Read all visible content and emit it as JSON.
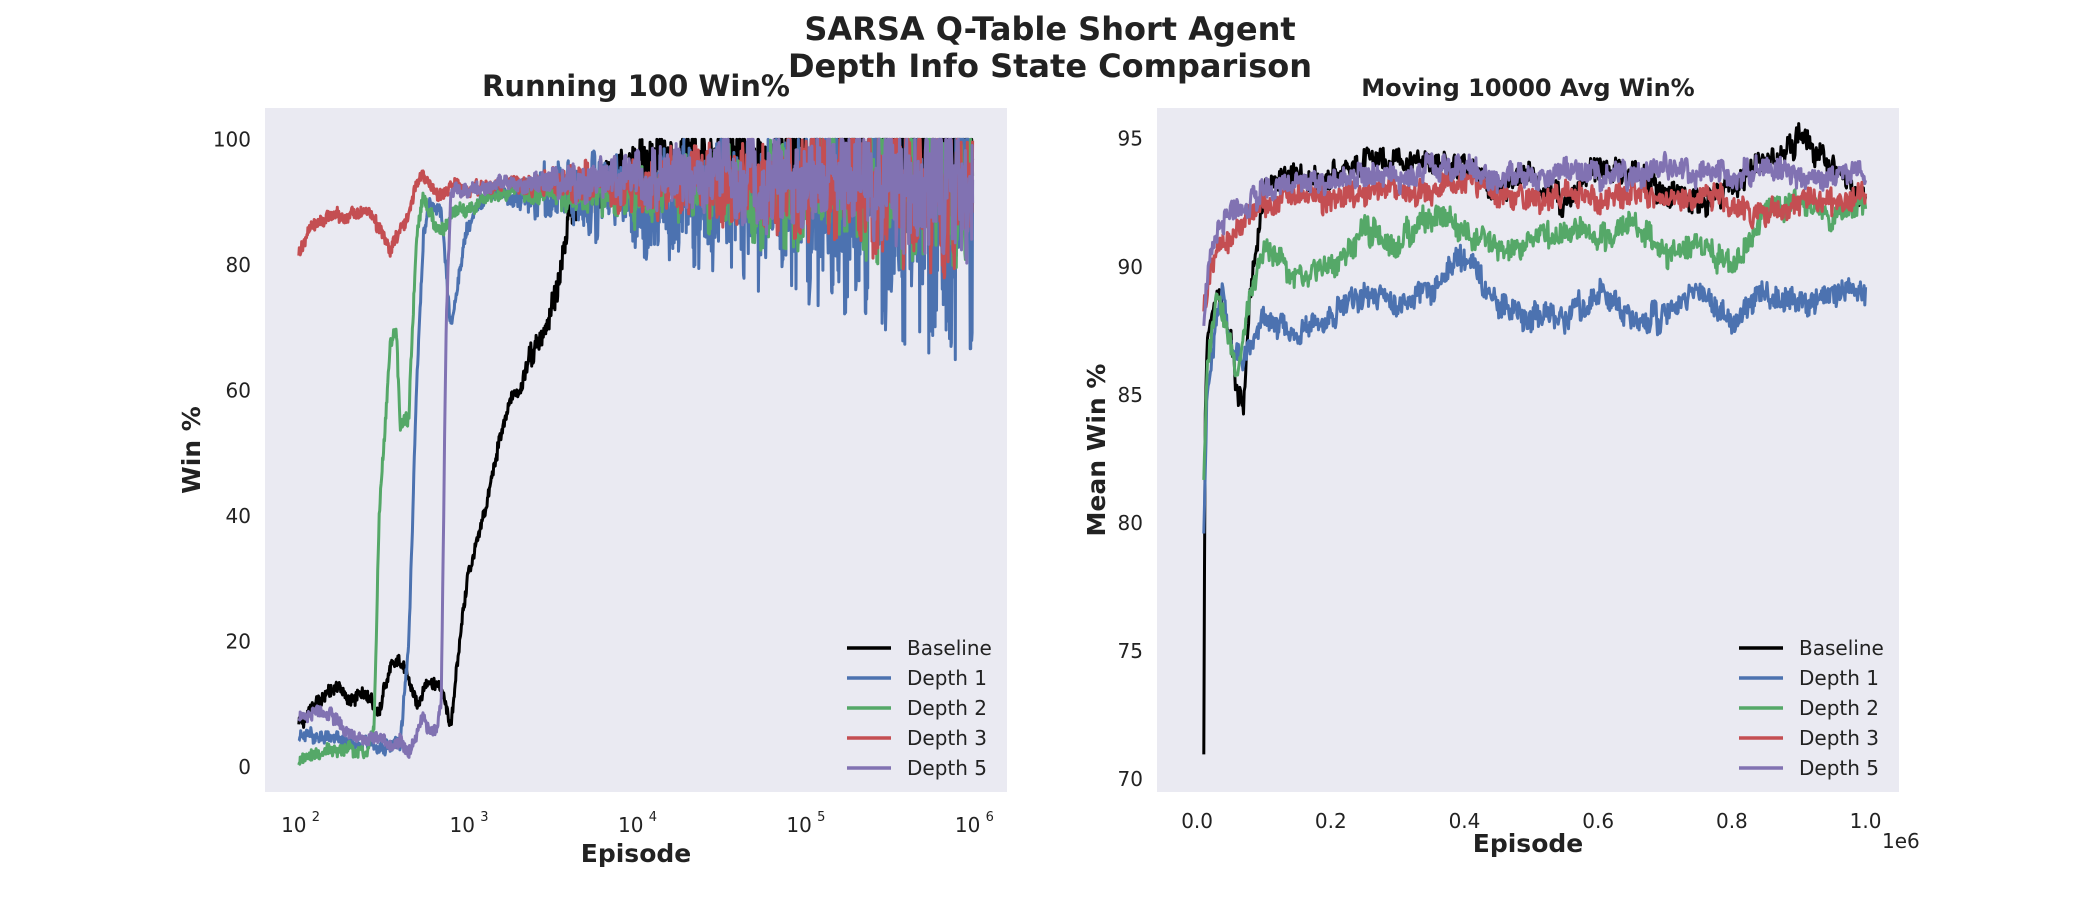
{
  "figure": {
    "suptitle_line1": "SARSA Q-Table Short Agent",
    "suptitle_line2": "Depth Info State Comparison"
  },
  "colors": {
    "background": "#eaeaf2",
    "Baseline": "#000000",
    "Depth 1": "#4c72b0",
    "Depth 2": "#55a868",
    "Depth 3": "#c44e52",
    "Depth 5": "#8172b2"
  },
  "chart_data": [
    {
      "type": "line",
      "title": "Running 100 Win%",
      "xlabel": "Episode",
      "ylabel": "Win %",
      "xscale": "log",
      "xlim": [
        63,
        1600000
      ],
      "ylim": [
        -4,
        105
      ],
      "xtick_labels": [
        {
          "value": 100,
          "base": "10",
          "exp": "2"
        },
        {
          "value": 1000,
          "base": "10",
          "exp": "3"
        },
        {
          "value": 10000,
          "base": "10",
          "exp": "4"
        },
        {
          "value": 100000,
          "base": "10",
          "exp": "5"
        },
        {
          "value": 1000000,
          "base": "10",
          "exp": "6"
        }
      ],
      "yticks": [
        0,
        20,
        40,
        60,
        80,
        100
      ],
      "grid": false,
      "legend": "bottom-right",
      "series": [
        {
          "name": "Baseline",
          "x": [
            100,
            130,
            170,
            200,
            250,
            300,
            350,
            400,
            500,
            600,
            700,
            800,
            900,
            1000,
            1200,
            1500,
            1800,
            2000,
            2500,
            3000,
            3500,
            4000,
            5000,
            7000,
            10000,
            20000,
            50000,
            100000,
            300000,
            1000000
          ],
          "y": [
            7,
            10,
            13,
            10,
            12,
            9,
            16,
            17,
            10,
            14,
            12,
            6,
            20,
            30,
            38,
            50,
            58,
            60,
            67,
            70,
            78,
            88,
            91,
            94,
            95,
            96,
            97,
            97,
            97,
            98
          ]
        },
        {
          "name": "Depth 1",
          "x": [
            100,
            150,
            200,
            250,
            300,
            350,
            400,
            450,
            500,
            550,
            600,
            700,
            800,
            1000,
            1200,
            1500,
            2000,
            3000,
            5000,
            10000,
            20000,
            50000,
            100000,
            300000,
            1000000
          ],
          "y": [
            5,
            5,
            4,
            4,
            3,
            3,
            4,
            20,
            60,
            85,
            90,
            88,
            70,
            86,
            90,
            92,
            90,
            92,
            91,
            90,
            90,
            90,
            90,
            90,
            88
          ]
        },
        {
          "name": "Depth 2",
          "x": [
            100,
            150,
            200,
            250,
            280,
            300,
            350,
            380,
            400,
            450,
            500,
            550,
            600,
            700,
            800,
            1000,
            1500,
            2000,
            3000,
            5000,
            10000,
            20000,
            50000,
            100000,
            300000,
            1000000
          ],
          "y": [
            1,
            3,
            3,
            2,
            6,
            40,
            68,
            70,
            54,
            56,
            85,
            92,
            88,
            85,
            88,
            89,
            91,
            92,
            91,
            92,
            91,
            92,
            91,
            91,
            92,
            92
          ]
        },
        {
          "name": "Depth 3",
          "x": [
            100,
            120,
            150,
            200,
            250,
            300,
            350,
            400,
            450,
            500,
            550,
            600,
            700,
            800,
            1000,
            1500,
            2000,
            3000,
            5000,
            10000,
            30000,
            100000,
            300000,
            1000000
          ],
          "y": [
            82,
            86,
            88,
            88,
            89,
            86,
            82,
            86,
            88,
            93,
            94,
            93,
            91,
            93,
            92,
            93,
            93,
            93,
            93,
            93,
            93,
            93,
            92,
            91
          ]
        },
        {
          "name": "Depth 5",
          "x": [
            100,
            150,
            200,
            250,
            300,
            350,
            400,
            450,
            500,
            550,
            600,
            650,
            700,
            750,
            800,
            1000,
            1500,
            2000,
            3000,
            5000,
            10000,
            30000,
            100000,
            300000,
            1000000
          ],
          "y": [
            8,
            9,
            5,
            4,
            5,
            3,
            4,
            2,
            5,
            8,
            6,
            6,
            10,
            70,
            92,
            92,
            93,
            93,
            93,
            93,
            93,
            94,
            93,
            93,
            93
          ]
        }
      ]
    },
    {
      "type": "line",
      "title": "Moving 10000 Avg Win%",
      "xlabel": "Episode",
      "ylabel": "Mean Win %",
      "xlim": [
        -0.06,
        1.05
      ],
      "ylim": [
        69.5,
        96.2
      ],
      "xticks": [
        0.0,
        0.2,
        0.4,
        0.6,
        0.8,
        1.0
      ],
      "xtick_labels": [
        "0.0",
        "0.2",
        "0.4",
        "0.6",
        "0.8",
        "1.0"
      ],
      "x_offset_label": "1e6",
      "yticks": [
        70,
        75,
        80,
        85,
        90,
        95
      ],
      "grid": false,
      "legend": "bottom-right",
      "series": [
        {
          "name": "Baseline",
          "x": [
            0.01,
            0.012,
            0.015,
            0.02,
            0.03,
            0.05,
            0.06,
            0.07,
            0.08,
            0.1,
            0.15,
            0.2,
            0.25,
            0.3,
            0.35,
            0.4,
            0.45,
            0.5,
            0.55,
            0.6,
            0.65,
            0.7,
            0.75,
            0.8,
            0.85,
            0.9,
            0.95,
            1.0
          ],
          "y": [
            71,
            84,
            87,
            88,
            89,
            87,
            85,
            84.5,
            89,
            93,
            93.5,
            93.5,
            94,
            94.2,
            93.8,
            94,
            93,
            93.5,
            92.5,
            94,
            93.5,
            93,
            92.5,
            93,
            94,
            95,
            94,
            92.5
          ]
        },
        {
          "name": "Depth 1",
          "x": [
            0.01,
            0.015,
            0.02,
            0.03,
            0.04,
            0.05,
            0.07,
            0.1,
            0.15,
            0.2,
            0.25,
            0.3,
            0.35,
            0.4,
            0.45,
            0.5,
            0.55,
            0.6,
            0.65,
            0.7,
            0.75,
            0.8,
            0.85,
            0.9,
            0.95,
            1.0
          ],
          "y": [
            80,
            85,
            86,
            88,
            89,
            87,
            86.5,
            88,
            87.5,
            88,
            89,
            88.5,
            89,
            90.5,
            88.5,
            88,
            88,
            89,
            88,
            88,
            89,
            88,
            89,
            88.5,
            89,
            89
          ]
        },
        {
          "name": "Depth 2",
          "x": [
            0.01,
            0.015,
            0.02,
            0.03,
            0.04,
            0.05,
            0.06,
            0.08,
            0.1,
            0.15,
            0.2,
            0.25,
            0.3,
            0.35,
            0.4,
            0.45,
            0.5,
            0.55,
            0.6,
            0.65,
            0.7,
            0.75,
            0.8,
            0.85,
            0.9,
            0.95,
            1.0
          ],
          "y": [
            82,
            86,
            87,
            89,
            88,
            87,
            86,
            89,
            91,
            89.5,
            90,
            91.5,
            91,
            92,
            91.5,
            90.5,
            91,
            91.5,
            91,
            92,
            90.5,
            91,
            90,
            92,
            92.5,
            92,
            92.5
          ]
        },
        {
          "name": "Depth 3",
          "x": [
            0.01,
            0.015,
            0.02,
            0.03,
            0.05,
            0.07,
            0.1,
            0.15,
            0.2,
            0.25,
            0.3,
            0.35,
            0.4,
            0.45,
            0.5,
            0.55,
            0.6,
            0.65,
            0.7,
            0.75,
            0.8,
            0.85,
            0.9,
            0.95,
            1.0
          ],
          "y": [
            88.5,
            89,
            90,
            90.5,
            91,
            92,
            92.5,
            93,
            92.5,
            93,
            93,
            93,
            93.5,
            93,
            92.5,
            93,
            92.5,
            93,
            92.5,
            93,
            92.5,
            92,
            92.5,
            92.5,
            93
          ]
        },
        {
          "name": "Depth 5",
          "x": [
            0.01,
            0.015,
            0.02,
            0.03,
            0.05,
            0.07,
            0.1,
            0.15,
            0.2,
            0.25,
            0.3,
            0.35,
            0.4,
            0.45,
            0.5,
            0.55,
            0.6,
            0.65,
            0.7,
            0.75,
            0.8,
            0.85,
            0.9,
            0.95,
            1.0
          ],
          "y": [
            88,
            89.5,
            90.5,
            91.5,
            92,
            92.5,
            93,
            93.2,
            93.3,
            93.5,
            93.5,
            93.8,
            94,
            93.5,
            93.5,
            93.8,
            93.5,
            93.6,
            93.8,
            93.5,
            93.5,
            93.8,
            93.5,
            93.5,
            93.5
          ]
        }
      ]
    }
  ]
}
